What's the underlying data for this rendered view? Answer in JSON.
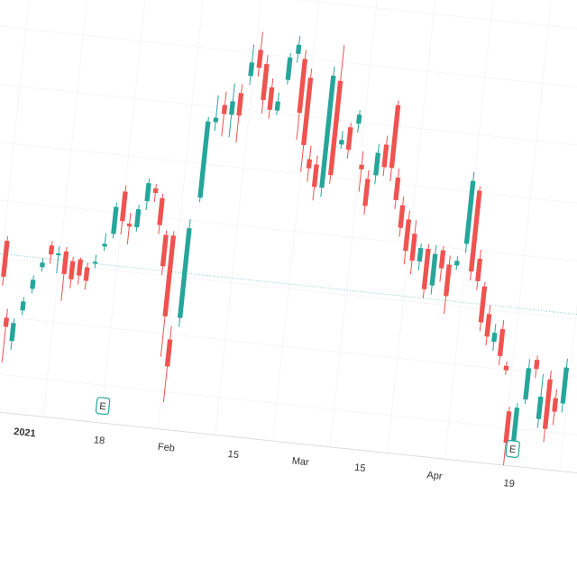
{
  "chart_data": {
    "type": "candlestick",
    "categories": [
      null,
      null,
      null,
      null,
      null,
      "2021",
      null,
      null,
      null,
      null,
      null,
      null,
      null,
      null,
      null,
      "18",
      null,
      null,
      null,
      null,
      null,
      null,
      null,
      null,
      "Feb",
      null,
      null,
      null,
      null,
      null,
      null,
      null,
      null,
      "15",
      null,
      null,
      null,
      null,
      null,
      null,
      null,
      null,
      "Mar",
      null,
      null,
      null,
      null,
      null,
      null,
      null,
      "15",
      null,
      null,
      null,
      null,
      null,
      null,
      null,
      null,
      null,
      "Apr",
      null,
      null,
      null,
      null,
      null,
      null,
      null,
      null,
      null,
      "19",
      null,
      null,
      null,
      null,
      null,
      null
    ],
    "markers": [
      null,
      null,
      null,
      null,
      null,
      null,
      null,
      null,
      null,
      null,
      null,
      null,
      null,
      null,
      null,
      "E",
      null,
      null,
      null,
      null,
      null,
      null,
      null,
      null,
      null,
      null,
      null,
      null,
      null,
      null,
      null,
      null,
      null,
      null,
      null,
      null,
      null,
      null,
      null,
      null,
      null,
      null,
      null,
      null,
      null,
      null,
      null,
      null,
      null,
      null,
      null,
      null,
      null,
      null,
      null,
      null,
      null,
      null,
      null,
      null,
      null,
      null,
      null,
      null,
      null,
      null,
      null,
      null,
      null,
      null,
      "E",
      null,
      null,
      null,
      null,
      null,
      null
    ],
    "open": [
      300,
      215,
      190,
      225,
      250,
      275,
      300,
      290,
      295,
      285,
      288,
      280,
      285,
      305,
      320,
      368,
      333,
      330,
      360,
      375,
      365,
      325,
      325,
      210,
      235,
      370,
      455,
      475,
      465,
      490,
      510,
      540,
      525,
      500,
      475,
      510,
      540,
      535,
      515,
      425,
      420,
      395,
      515,
      445,
      465,
      470,
      425,
      410,
      415,
      450,
      495,
      415,
      385,
      370,
      355,
      325,
      340,
      300,
      340,
      325,
      325,
      350,
      410,
      335,
      305,
      275,
      245,
      260,
      220,
      170,
      135,
      185,
      230,
      165,
      210,
      190,
      185
    ],
    "high": [
      305,
      225,
      215,
      240,
      265,
      285,
      305,
      300,
      300,
      290,
      290,
      285,
      295,
      320,
      355,
      375,
      345,
      355,
      385,
      380,
      370,
      330,
      330,
      225,
      345,
      460,
      485,
      490,
      500,
      500,
      545,
      560,
      535,
      510,
      495,
      540,
      560,
      545,
      525,
      440,
      430,
      530,
      555,
      460,
      470,
      485,
      440,
      420,
      450,
      460,
      500,
      425,
      395,
      380,
      370,
      345,
      345,
      345,
      345,
      335,
      335,
      430,
      415,
      345,
      310,
      285,
      265,
      270,
      225,
      175,
      180,
      230,
      235,
      215,
      220,
      200,
      235
    ],
    "low": [
      250,
      165,
      180,
      220,
      245,
      270,
      280,
      270,
      240,
      255,
      260,
      255,
      280,
      300,
      315,
      320,
      310,
      325,
      350,
      360,
      325,
      280,
      190,
      140,
      225,
      365,
      445,
      440,
      440,
      435,
      500,
      510,
      470,
      465,
      470,
      505,
      530,
      445,
      410,
      400,
      380,
      385,
      400,
      440,
      430,
      460,
      395,
      370,
      405,
      415,
      410,
      380,
      350,
      320,
      310,
      315,
      285,
      290,
      305,
      270,
      320,
      340,
      310,
      300,
      255,
      240,
      235,
      220,
      210,
      110,
      130,
      180,
      210,
      155,
      140,
      160,
      175
    ],
    "close": [
      260,
      205,
      210,
      235,
      260,
      280,
      290,
      292,
      270,
      265,
      270,
      265,
      287,
      308,
      350,
      335,
      330,
      350,
      380,
      370,
      335,
      290,
      235,
      180,
      335,
      455,
      460,
      465,
      480,
      465,
      525,
      520,
      485,
      475,
      485,
      535,
      550,
      475,
      440,
      415,
      395,
      520,
      410,
      450,
      440,
      480,
      420,
      380,
      440,
      425,
      425,
      390,
      360,
      335,
      325,
      340,
      295,
      335,
      320,
      290,
      330,
      420,
      320,
      310,
      265,
      250,
      255,
      230,
      215,
      135,
      175,
      220,
      220,
      190,
      155,
      175,
      225
    ],
    "up_color": "#26a69a",
    "down_color": "#ef5350",
    "price_line": 285,
    "ylim": [
      0,
      600
    ]
  }
}
